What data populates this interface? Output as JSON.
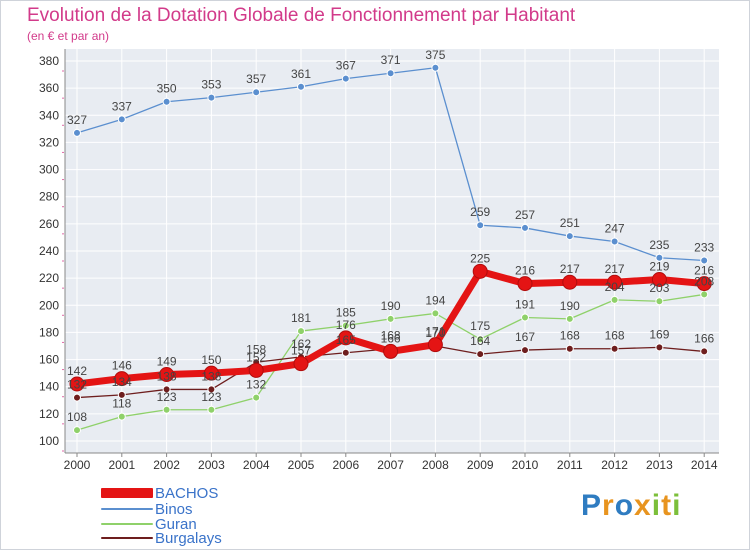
{
  "title": "Evolution de la Dotation Globale de Fonctionnement par Habitant",
  "subtitle": "(en € et par an)",
  "logo": {
    "letters": [
      "P",
      "r",
      "o",
      "x",
      "i",
      "t",
      "i"
    ],
    "colors": [
      "#2f7cc1",
      "#e8941f",
      "#2f7cc1",
      "#e8941f",
      "#7cbf3a",
      "#e8941f",
      "#7cbf3a"
    ]
  },
  "chart_data": {
    "type": "line",
    "categories": [
      "2000",
      "2001",
      "2002",
      "2003",
      "2004",
      "2005",
      "2006",
      "2007",
      "2008",
      "2009",
      "2010",
      "2011",
      "2012",
      "2013",
      "2014"
    ],
    "ylim": [
      100,
      380
    ],
    "yticks": [
      "100",
      "120",
      "140",
      "160",
      "180",
      "200",
      "220",
      "240",
      "260",
      "280",
      "300",
      "320",
      "340",
      "360",
      "380"
    ],
    "grid": true,
    "legend_position": "bottom-left",
    "series": [
      {
        "name": "BACHOS",
        "color": "#e41414",
        "values": [
          142,
          146,
          149,
          150,
          152,
          157,
          176,
          166,
          171,
          225,
          216,
          217,
          217,
          219,
          216
        ]
      },
      {
        "name": "Binos",
        "color": "#5b8fcf",
        "values": [
          327,
          337,
          350,
          353,
          357,
          361,
          367,
          371,
          375,
          259,
          257,
          251,
          247,
          235,
          233
        ]
      },
      {
        "name": "Guran",
        "color": "#8fd16a",
        "values": [
          108,
          118,
          123,
          123,
          132,
          181,
          185,
          190,
          194,
          175,
          191,
          190,
          204,
          203,
          208
        ]
      },
      {
        "name": "Burgalays",
        "color": "#6e1e1e",
        "values": [
          132,
          134,
          138,
          138,
          158,
          162,
          165,
          168,
          170,
          164,
          167,
          168,
          168,
          169,
          166
        ]
      }
    ],
    "data_labels": [
      [
        "142",
        "146",
        "149",
        "150",
        "152",
        "157",
        "176",
        "166",
        "171",
        "225",
        "216",
        "217",
        "217",
        "219",
        "216"
      ],
      [
        "327",
        "337",
        "350",
        "353",
        "357",
        "361",
        "367",
        "371",
        "375",
        "259",
        "257",
        "251",
        "247",
        "235",
        "233"
      ],
      [
        "108",
        "118",
        "123",
        "123",
        "132",
        "181",
        "185",
        "190",
        "194",
        "175",
        "191",
        "190",
        "204",
        "203",
        "208"
      ],
      [
        "132",
        "134",
        "138",
        "138",
        "158",
        "162",
        "165",
        "168",
        "170",
        "164",
        "167",
        "168",
        "168",
        "169",
        "166"
      ]
    ]
  }
}
